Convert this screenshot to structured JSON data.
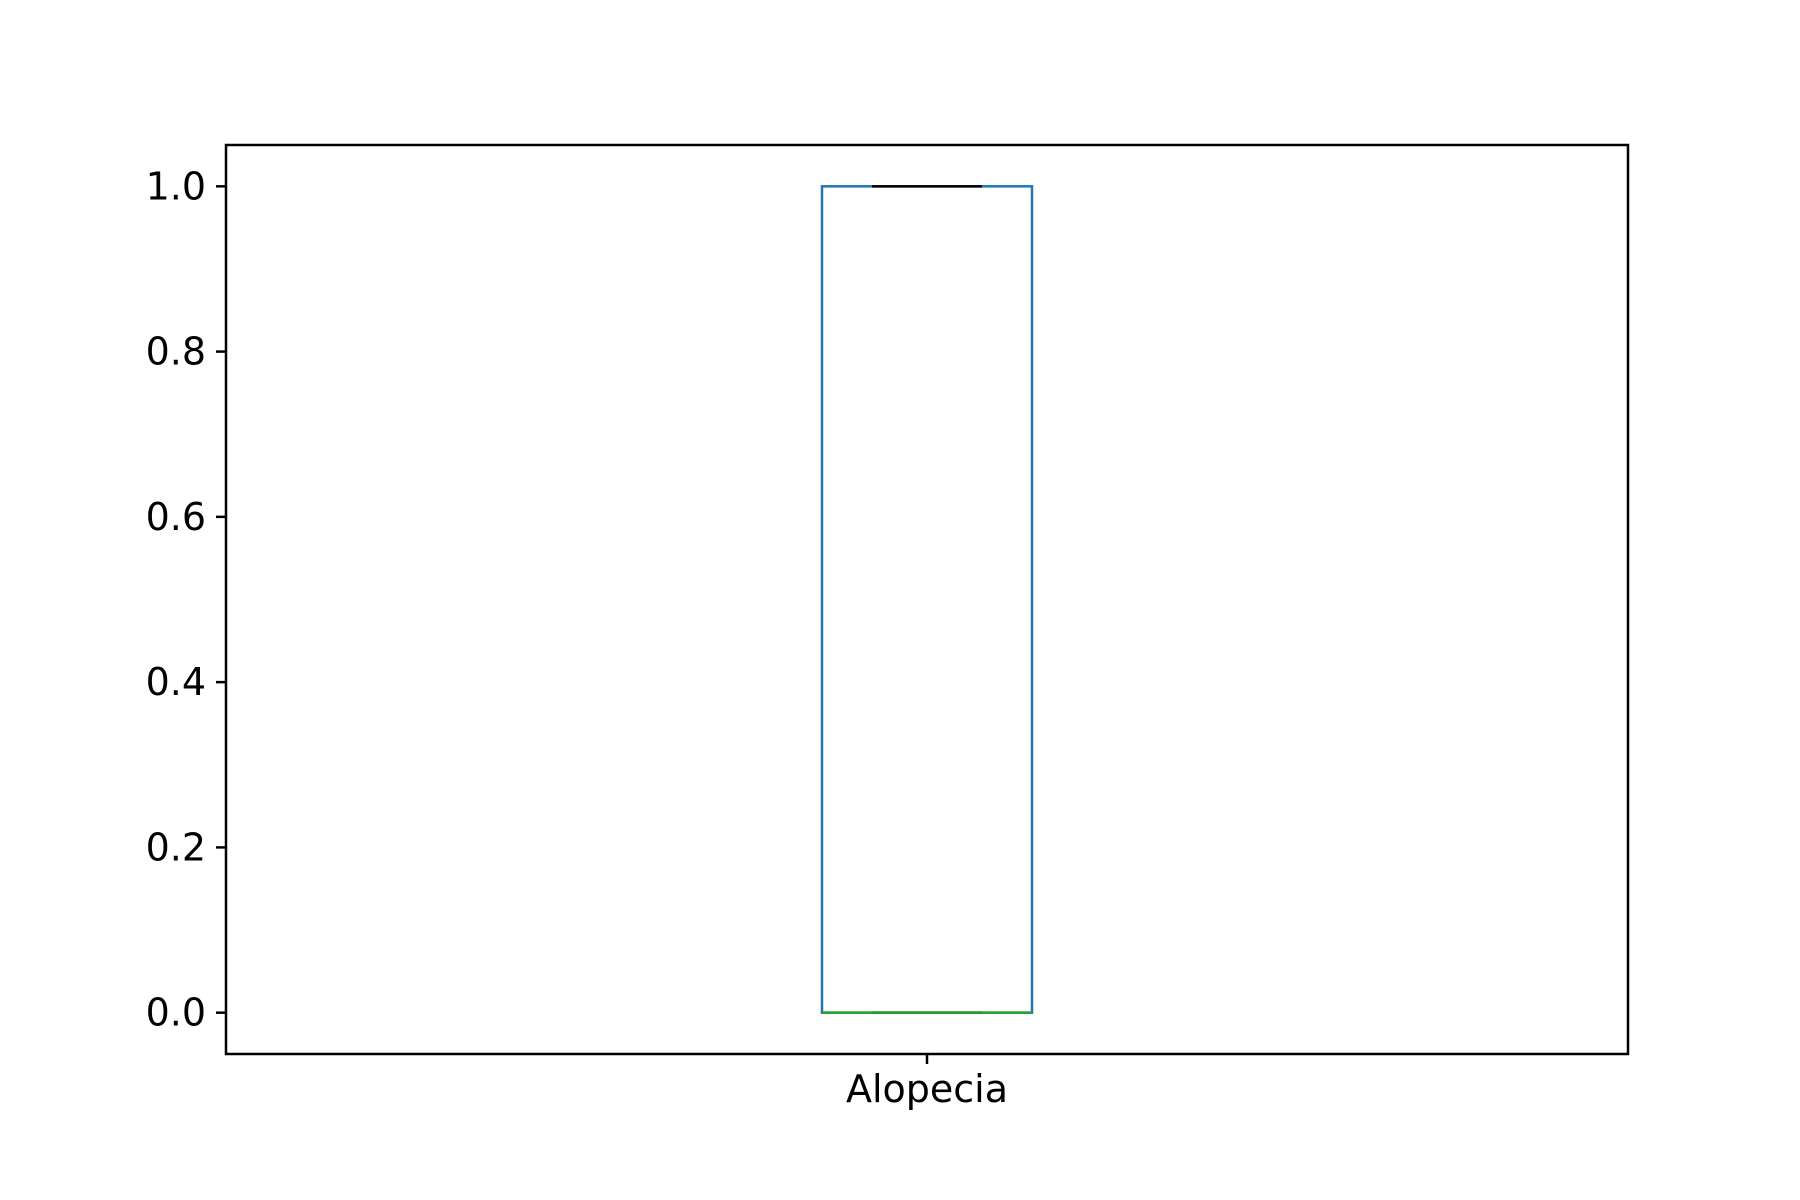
{
  "chart_data": {
    "type": "box",
    "categories": [
      "Alopecia"
    ],
    "boxes": [
      {
        "category": "Alopecia",
        "min": 0.0,
        "q1": 0.0,
        "median": 0.0,
        "q3": 1.0,
        "max": 1.0
      }
    ],
    "ylim": [
      -0.05,
      1.05
    ],
    "yticks": [
      0.0,
      0.2,
      0.4,
      0.6,
      0.8,
      1.0
    ],
    "ytick_labels": [
      "0.0",
      "0.2",
      "0.4",
      "0.6",
      "0.8",
      "1.0"
    ],
    "title": "",
    "xlabel": "",
    "ylabel": "",
    "grid": false,
    "colors": {
      "box": "#1f77b4",
      "whisker": "#1f77b4",
      "cap": "#000000",
      "median": "#2ca02c",
      "axes": "#000000"
    }
  }
}
